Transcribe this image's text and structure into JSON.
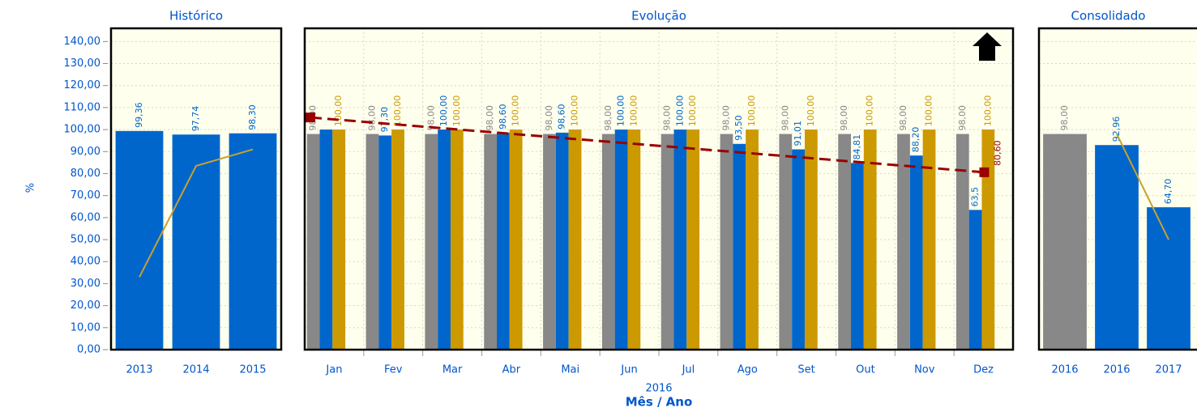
{
  "chart_data": [
    {
      "type": "bar",
      "title": "Histórico",
      "ylabel": "%",
      "categories": [
        "2013",
        "2014",
        "2015"
      ],
      "ylim": [
        0,
        146
      ],
      "yticks": [
        {
          "value": 0,
          "label": "0,00"
        },
        {
          "value": 10,
          "label": "10,00"
        },
        {
          "value": 20,
          "label": "20,00"
        },
        {
          "value": 30,
          "label": "30,00"
        },
        {
          "value": 40,
          "label": "40,00"
        },
        {
          "value": 50,
          "label": "50,00"
        },
        {
          "value": 60,
          "label": "60,00"
        },
        {
          "value": 70,
          "label": "70,00"
        },
        {
          "value": 80,
          "label": "80,00"
        },
        {
          "value": 90,
          "label": "90,00"
        },
        {
          "value": 100,
          "label": "100,00"
        },
        {
          "value": 110,
          "label": "110,00"
        },
        {
          "value": 120,
          "label": "120,00"
        },
        {
          "value": 130,
          "label": "130,00"
        },
        {
          "value": 140,
          "label": "140,00"
        }
      ],
      "grid": true,
      "series": [
        {
          "color": "#0066cc",
          "values": [
            99.36,
            97.74,
            98.3
          ],
          "value_labels": [
            "99,36",
            "97,74",
            "98,30"
          ]
        }
      ],
      "lines": [
        {
          "color": "#c8a030",
          "values": [
            33,
            83.5,
            91
          ]
        }
      ]
    },
    {
      "type": "bar",
      "title": "Evolução",
      "xlabel_sub": "2016",
      "xlabel": "Mês / Ano",
      "categories": [
        "Jan",
        "Fev",
        "Mar",
        "Abr",
        "Mai",
        "Jun",
        "Jul",
        "Ago",
        "Set",
        "Out",
        "Nov",
        "Dez"
      ],
      "ylim": [
        0,
        146
      ],
      "grid": true,
      "series": [
        {
          "color": "#888888",
          "values": [
            98,
            98,
            98,
            98,
            98,
            98,
            98,
            98,
            98,
            98,
            98,
            98
          ],
          "value_labels": [
            "98,00",
            "98,00",
            "98,00",
            "98,00",
            "98,00",
            "98,00",
            "98,00",
            "98,00",
            "98,00",
            "98,00",
            "98,00",
            "98,00"
          ]
        },
        {
          "color": "#0066cc",
          "values": [
            100,
            97.3,
            100,
            98.6,
            98.6,
            100,
            100,
            93.5,
            91.01,
            84.81,
            88.2,
            63.5
          ],
          "value_labels": [
            null,
            "97,30",
            "100,00",
            "98,60",
            "98,60",
            "100,00",
            "100,00",
            "93,50",
            "91,01",
            "84,81",
            "88,20",
            "63,5"
          ]
        },
        {
          "color": "#cc9900",
          "values": [
            100,
            100,
            100,
            100,
            100,
            100,
            100,
            100,
            100,
            100,
            100,
            100
          ],
          "value_labels": [
            "100,00",
            "100,00",
            "100,00",
            "100,00",
            "100,00",
            "100,00",
            "100,00",
            "100,00",
            "100,00",
            "100,00",
            "100,00",
            "100,00"
          ]
        }
      ],
      "trend": {
        "color": "#990000",
        "values": [
          105.5,
          80.6
        ],
        "end_label": "80,60"
      }
    },
    {
      "type": "bar",
      "title": "Consolidado",
      "categories": [
        "2016",
        "2016",
        "2017"
      ],
      "ylim": [
        0,
        146
      ],
      "grid": true,
      "series": [
        {
          "color": "#888888",
          "values": [
            98,
            null,
            null
          ],
          "value_labels": [
            "98,00",
            null,
            null
          ]
        },
        {
          "color": "#0066cc",
          "values": [
            null,
            92.96,
            64.7
          ],
          "value_labels": [
            null,
            "92,96",
            "64,70"
          ]
        }
      ],
      "lines": [
        {
          "color": "#c8a030",
          "values": [
            null,
            98,
            50
          ]
        }
      ]
    }
  ]
}
